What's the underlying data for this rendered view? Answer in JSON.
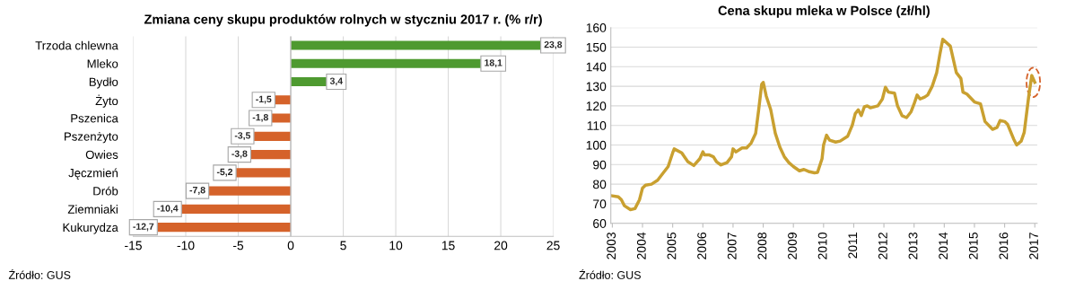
{
  "chart_data": [
    {
      "type": "bar",
      "orientation": "horizontal",
      "title": "Zmiana ceny skupu produktów rolnych w styczniu 2017 r. (% r/r)",
      "categories": [
        "Trzoda chlewna",
        "Mleko",
        "Bydło",
        "Żyto",
        "Pszenica",
        "Pszenżyto",
        "Owies",
        "Jęczmień",
        "Drób",
        "Ziemniaki",
        "Kukurydza"
      ],
      "values": [
        23.8,
        18.1,
        3.4,
        -1.5,
        -1.8,
        -3.5,
        -3.8,
        -5.2,
        -7.8,
        -10.4,
        -12.7
      ],
      "colors": [
        "#4e9a30",
        "#4e9a30",
        "#4e9a30",
        "#d5622a",
        "#d5622a",
        "#d5622a",
        "#d5622a",
        "#d5622a",
        "#d5622a",
        "#d5622a",
        "#d5622a"
      ],
      "value_labels": [
        "23,8",
        "18,1",
        "3,4",
        "-1,5",
        "-1,8",
        "-3,5",
        "-3,8",
        "-5,2",
        "-7,8",
        "-10,4",
        "-12,7"
      ],
      "xlim": [
        -15,
        25
      ],
      "xticks": [
        -15,
        -10,
        -5,
        0,
        5,
        10,
        15,
        20,
        25
      ],
      "grid": "x",
      "annotations": [
        "Źródło: GUS"
      ]
    },
    {
      "type": "line",
      "title": "Cena skupu mleka w Polsce (zł/hl)",
      "x": [
        2003.0,
        2003.2,
        2003.3,
        2003.4,
        2003.6,
        2003.75,
        2003.9,
        2004.0,
        2004.1,
        2004.3,
        2004.5,
        2004.7,
        2004.85,
        2005.0,
        2005.05,
        2005.3,
        2005.5,
        2005.7,
        2005.9,
        2006.0,
        2006.05,
        2006.2,
        2006.35,
        2006.45,
        2006.6,
        2006.8,
        2006.95,
        2007.0,
        2007.1,
        2007.3,
        2007.45,
        2007.6,
        2007.75,
        2007.85,
        2007.95,
        2008.0,
        2008.1,
        2008.25,
        2008.4,
        2008.55,
        2008.7,
        2008.85,
        2009.0,
        2009.2,
        2009.35,
        2009.5,
        2009.7,
        2009.8,
        2009.95,
        2010.0,
        2010.1,
        2010.2,
        2010.4,
        2010.55,
        2010.8,
        2010.95,
        2011.05,
        2011.15,
        2011.25,
        2011.35,
        2011.45,
        2011.55,
        2011.8,
        2011.95,
        2012.05,
        2012.15,
        2012.35,
        2012.45,
        2012.6,
        2012.75,
        2012.9,
        2013.0,
        2013.1,
        2013.2,
        2013.35,
        2013.45,
        2013.6,
        2013.75,
        2013.85,
        2013.95,
        2014.2,
        2014.4,
        2014.55,
        2014.62,
        2014.75,
        2015.0,
        2015.2,
        2015.35,
        2015.6,
        2015.75,
        2015.85,
        2016.0,
        2016.1,
        2016.3,
        2016.4,
        2016.55,
        2016.65,
        2016.8,
        2016.9,
        2017.0
      ],
      "series": [
        {
          "color": "#c9a030",
          "values": [
            74,
            73.5,
            72,
            69,
            67,
            67.5,
            72,
            78,
            79.5,
            80,
            82,
            86,
            89,
            96,
            98,
            96,
            91.5,
            89.5,
            93,
            96.5,
            95,
            95,
            94,
            91.5,
            89.8,
            91,
            94,
            98,
            96.5,
            98.5,
            98.5,
            101,
            106,
            118,
            131,
            132,
            125,
            118,
            106,
            99,
            94,
            91,
            89,
            86.8,
            87.5,
            86.5,
            85.8,
            86,
            93,
            100,
            105,
            102.5,
            101.5,
            102,
            104.5,
            110,
            116,
            118,
            115,
            119.5,
            120,
            119,
            120,
            123.5,
            129.5,
            127,
            126.5,
            120,
            115,
            114,
            117,
            121,
            125.5,
            123.5,
            124.5,
            125.5,
            130,
            137,
            146,
            154,
            150.5,
            137,
            134,
            127,
            126,
            122,
            121,
            112,
            108,
            109,
            112.5,
            112,
            110.5,
            103,
            100,
            102,
            106.5,
            125,
            135.5,
            132
          ]
        }
      ],
      "xlim": [
        2002.95,
        2017.08
      ],
      "xticks": [
        2003,
        2004,
        2005,
        2006,
        2007,
        2008,
        2009,
        2010,
        2011,
        2012,
        2013,
        2014,
        2015,
        2016,
        2017
      ],
      "ylim": [
        60,
        160
      ],
      "yticks": [
        60,
        70,
        80,
        90,
        100,
        110,
        120,
        130,
        140,
        150,
        160
      ],
      "grid": "y",
      "annotations": [
        "Źródło: GUS"
      ]
    }
  ]
}
